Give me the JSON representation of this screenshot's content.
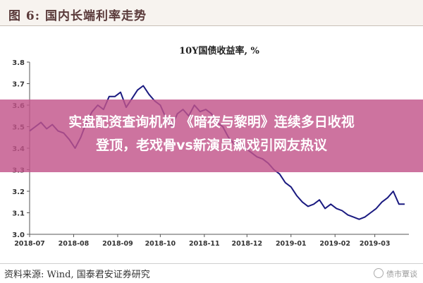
{
  "header": {
    "title": "图 6:  国内长端利率走势"
  },
  "banner": {
    "line1": "实盘配资查询机构 《暗夜与黎明》连续多日收视",
    "line2": "登顶，老戏骨vs新演员飙戏引网友热议"
  },
  "footer": {
    "source": "资料来源:  Wind,  国泰君安证券研究",
    "watermark": "债市覃谈"
  },
  "chart_data": {
    "type": "line",
    "title": "10Y国债收益率, %",
    "xlabel": "",
    "ylabel": "",
    "xlim": [
      "2018-07-01",
      "2019-03-25"
    ],
    "ylim": [
      3.0,
      3.8
    ],
    "yticks": [
      3.0,
      3.1,
      3.2,
      3.3,
      3.4,
      3.5,
      3.6,
      3.7,
      3.8
    ],
    "xticks": [
      "2018-07",
      "2018-08",
      "2018-09",
      "2018-10",
      "2018-11",
      "2018-12",
      "2019-01",
      "2019-02",
      "2019-03"
    ],
    "grid": false,
    "legend": "none",
    "line_color": "#1a1a80",
    "series": [
      {
        "x": [
          "2018-07-01",
          "2018-07-05",
          "2018-07-09",
          "2018-07-13",
          "2018-07-17",
          "2018-07-21",
          "2018-07-25",
          "2018-07-29",
          "2018-08-02",
          "2018-08-06",
          "2018-08-10",
          "2018-08-14",
          "2018-08-18",
          "2018-08-22",
          "2018-08-26",
          "2018-08-30",
          "2018-09-03",
          "2018-09-07",
          "2018-09-11",
          "2018-09-15",
          "2018-09-19",
          "2018-09-23",
          "2018-09-27",
          "2018-10-01",
          "2018-10-05",
          "2018-10-09",
          "2018-10-13",
          "2018-10-17",
          "2018-10-21",
          "2018-10-25",
          "2018-10-29",
          "2018-11-02",
          "2018-11-06",
          "2018-11-10",
          "2018-11-14",
          "2018-11-18",
          "2018-11-22",
          "2018-11-26",
          "2018-11-30",
          "2018-12-04",
          "2018-12-08",
          "2018-12-12",
          "2018-12-16",
          "2018-12-20",
          "2018-12-24",
          "2018-12-28",
          "2019-01-01",
          "2019-01-05",
          "2019-01-09",
          "2019-01-13",
          "2019-01-17",
          "2019-01-21",
          "2019-01-25",
          "2019-01-29",
          "2019-02-02",
          "2019-02-06",
          "2019-02-10",
          "2019-02-14",
          "2019-02-18",
          "2019-02-22",
          "2019-02-26",
          "2019-03-02",
          "2019-03-06",
          "2019-03-10",
          "2019-03-14",
          "2019-03-18",
          "2019-03-22"
        ],
        "values": [
          3.48,
          3.5,
          3.52,
          3.49,
          3.51,
          3.48,
          3.47,
          3.44,
          3.4,
          3.45,
          3.52,
          3.57,
          3.6,
          3.58,
          3.64,
          3.64,
          3.66,
          3.59,
          3.63,
          3.67,
          3.69,
          3.65,
          3.62,
          3.6,
          3.54,
          3.5,
          3.56,
          3.58,
          3.55,
          3.6,
          3.57,
          3.58,
          3.56,
          3.52,
          3.5,
          3.45,
          3.42,
          3.43,
          3.4,
          3.38,
          3.36,
          3.35,
          3.33,
          3.3,
          3.28,
          3.24,
          3.22,
          3.18,
          3.15,
          3.13,
          3.14,
          3.16,
          3.12,
          3.14,
          3.12,
          3.11,
          3.09,
          3.08,
          3.07,
          3.08,
          3.1,
          3.12,
          3.15,
          3.17,
          3.2,
          3.14,
          3.14
        ]
      }
    ]
  }
}
